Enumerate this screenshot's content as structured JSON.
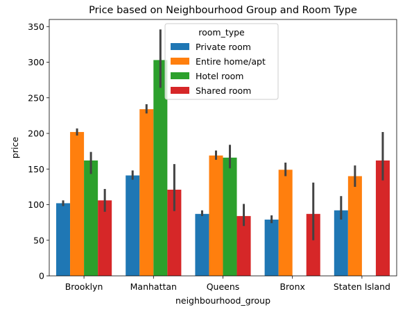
{
  "chart_data": {
    "type": "bar",
    "title": "Price based on Neighbourhood Group and Room Type",
    "xlabel": "neighbourhood_group",
    "ylabel": "price",
    "ylim": [
      0,
      360
    ],
    "yticks": [
      0,
      50,
      100,
      150,
      200,
      250,
      300,
      350
    ],
    "categories": [
      "Brooklyn",
      "Manhattan",
      "Queens",
      "Bronx",
      "Staten Island"
    ],
    "legend": {
      "title": "room_type",
      "placement": "top-center"
    },
    "series": [
      {
        "name": "Private room",
        "color": "#1f77b4",
        "values": [
          102,
          141,
          87,
          79,
          92
        ],
        "ci_low": [
          98,
          135,
          84,
          74,
          79
        ],
        "ci_high": [
          106,
          148,
          92,
          85,
          112
        ]
      },
      {
        "name": "Entire home/apt",
        "color": "#ff7f0e",
        "values": [
          202,
          234,
          169,
          149,
          140
        ],
        "ci_low": [
          197,
          228,
          163,
          140,
          125
        ],
        "ci_high": [
          207,
          241,
          176,
          159,
          155
        ]
      },
      {
        "name": "Hotel room",
        "color": "#2ca02c",
        "values": [
          162,
          303,
          166,
          null,
          null
        ],
        "ci_low": [
          143,
          264,
          151,
          null,
          null
        ],
        "ci_high": [
          174,
          346,
          184,
          null,
          null
        ]
      },
      {
        "name": "Shared room",
        "color": "#d62728",
        "values": [
          106,
          121,
          84,
          87,
          162
        ],
        "ci_low": [
          90,
          91,
          70,
          50,
          134
        ],
        "ci_high": [
          122,
          157,
          101,
          131,
          202
        ]
      }
    ]
  }
}
